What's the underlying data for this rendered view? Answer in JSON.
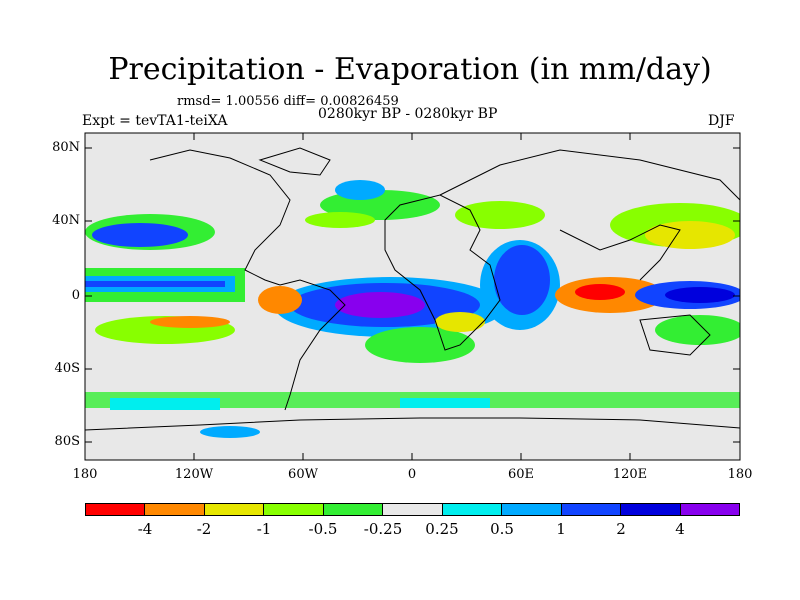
{
  "title": "Precipitation - Evaporation (in mm/day)",
  "stats": "rmsd= 1.00556 diff= 0.00826459",
  "experiment": "Expt = tevTA1-teiXA",
  "period": "0280kyr BP - 0280kyr BP",
  "season": "DJF",
  "y_ticks": [
    "80N",
    "40N",
    "0",
    "40S",
    "80S"
  ],
  "x_ticks": [
    "180",
    "120W",
    "60W",
    "0",
    "60E",
    "120E",
    "180"
  ],
  "colorbar": {
    "colors": [
      "#ff0000",
      "#ff8800",
      "#e6e600",
      "#88ff00",
      "#33ee33",
      "#e8e8e8",
      "#00eeee",
      "#00aaff",
      "#1144ff",
      "#0000dd",
      "#8800ee"
    ],
    "labels": [
      "-4",
      "-2",
      "-1",
      "-0.5",
      "-0.25",
      "0.25",
      "0.5",
      "1",
      "2",
      "4"
    ]
  }
}
